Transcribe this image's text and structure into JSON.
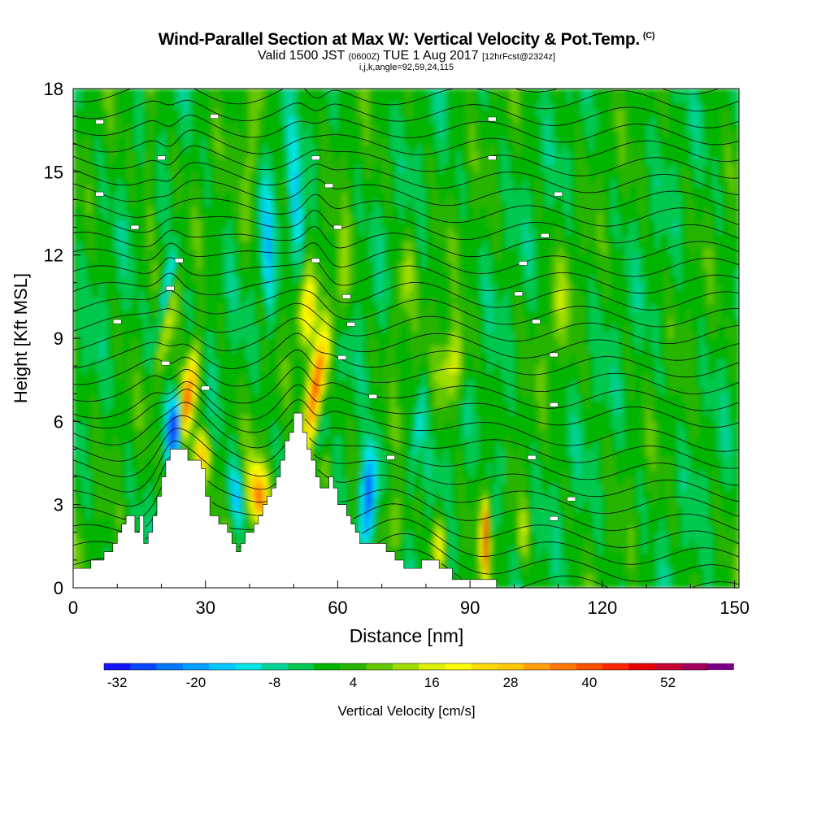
{
  "chart_data": {
    "type": "heatmap",
    "title": "Wind-Parallel Section at Max W: Vertical Velocity & Pot.Temp.",
    "title_mark": "(C)",
    "subtitle_main": "Valid 1500 JST",
    "subtitle_z": "(0600Z)",
    "subtitle_date": "TUE 1 Aug 2017",
    "subtitle_fcst": "[12hrFcst@2324z]",
    "subtitle_params": "i,j,k,angle=92,59,24,115",
    "xlabel": "Distance [nm]",
    "ylabel": "Height [Kft MSL]",
    "xlim": [
      0,
      151
    ],
    "ylim": [
      0,
      18
    ],
    "xticks": [
      0,
      30,
      60,
      90,
      120,
      150
    ],
    "yticks": [
      0,
      3,
      6,
      9,
      12,
      15,
      18
    ],
    "colorbar": {
      "label": "Vertical Velocity [cm/s]",
      "min": -34,
      "max": 58,
      "step": 4,
      "tick_values": [
        -32,
        -20,
        -8,
        4,
        16,
        28,
        40,
        52
      ],
      "tick_labels": [
        "-32",
        "-20",
        "-8",
        "4",
        "16",
        "28",
        "40",
        "52"
      ],
      "colors": [
        "#1414ff",
        "#0a46ff",
        "#0078ff",
        "#00a0ff",
        "#00c8ff",
        "#00e6e6",
        "#00d296",
        "#00c850",
        "#00b400",
        "#28b400",
        "#64c800",
        "#a0dc00",
        "#dcf000",
        "#ffff00",
        "#ffdc00",
        "#ffc800",
        "#ffa000",
        "#ff7800",
        "#ff5000",
        "#ff2800",
        "#e60000",
        "#c80032",
        "#a0005a",
        "#780082"
      ]
    },
    "terrain_kft": [
      [
        0,
        0.7
      ],
      [
        4,
        0.7
      ],
      [
        4,
        1.0
      ],
      [
        7,
        1.0
      ],
      [
        7,
        1.3
      ],
      [
        9,
        1.3
      ],
      [
        9,
        1.6
      ],
      [
        10,
        1.6
      ],
      [
        10,
        2.0
      ],
      [
        11,
        2.0
      ],
      [
        11,
        2.3
      ],
      [
        12,
        2.3
      ],
      [
        12,
        2.6
      ],
      [
        14,
        2.6
      ],
      [
        14,
        2.0
      ],
      [
        15,
        2.0
      ],
      [
        15,
        2.6
      ],
      [
        16,
        2.6
      ],
      [
        16,
        1.6
      ],
      [
        17,
        1.6
      ],
      [
        17,
        2.0
      ],
      [
        18,
        2.0
      ],
      [
        18,
        2.6
      ],
      [
        19,
        2.6
      ],
      [
        19,
        3.3
      ],
      [
        20,
        3.3
      ],
      [
        20,
        4.0
      ],
      [
        21,
        4.0
      ],
      [
        21,
        4.6
      ],
      [
        22,
        4.6
      ],
      [
        22,
        5.0
      ],
      [
        26,
        5.0
      ],
      [
        26,
        4.6
      ],
      [
        29,
        4.6
      ],
      [
        29,
        4.3
      ],
      [
        30,
        4.3
      ],
      [
        30,
        3.3
      ],
      [
        31,
        3.3
      ],
      [
        31,
        2.6
      ],
      [
        33,
        2.6
      ],
      [
        33,
        2.3
      ],
      [
        35,
        2.3
      ],
      [
        35,
        2.0
      ],
      [
        36,
        2.0
      ],
      [
        36,
        1.6
      ],
      [
        37,
        1.6
      ],
      [
        37,
        1.3
      ],
      [
        38,
        1.3
      ],
      [
        38,
        1.6
      ],
      [
        39,
        1.6
      ],
      [
        39,
        2.0
      ],
      [
        41,
        2.0
      ],
      [
        41,
        2.3
      ],
      [
        42,
        2.3
      ],
      [
        42,
        2.6
      ],
      [
        43,
        2.6
      ],
      [
        43,
        3.0
      ],
      [
        44,
        3.0
      ],
      [
        44,
        3.3
      ],
      [
        45,
        3.3
      ],
      [
        45,
        3.6
      ],
      [
        46,
        3.6
      ],
      [
        46,
        4.0
      ],
      [
        47,
        4.0
      ],
      [
        47,
        4.6
      ],
      [
        48,
        4.6
      ],
      [
        48,
        5.3
      ],
      [
        49,
        5.3
      ],
      [
        49,
        5.6
      ],
      [
        50,
        5.6
      ],
      [
        50,
        6.3
      ],
      [
        52,
        6.3
      ],
      [
        52,
        5.6
      ],
      [
        53,
        5.6
      ],
      [
        53,
        5.0
      ],
      [
        54,
        5.0
      ],
      [
        54,
        4.6
      ],
      [
        55,
        4.6
      ],
      [
        55,
        4.0
      ],
      [
        56,
        4.0
      ],
      [
        56,
        3.6
      ],
      [
        58,
        3.6
      ],
      [
        58,
        4.0
      ],
      [
        59,
        4.0
      ],
      [
        59,
        3.6
      ],
      [
        60,
        3.6
      ],
      [
        60,
        3.0
      ],
      [
        62,
        3.0
      ],
      [
        62,
        2.6
      ],
      [
        63,
        2.6
      ],
      [
        63,
        2.3
      ],
      [
        64,
        2.3
      ],
      [
        64,
        2.0
      ],
      [
        65,
        2.0
      ],
      [
        65,
        1.6
      ],
      [
        71,
        1.6
      ],
      [
        71,
        1.3
      ],
      [
        73,
        1.3
      ],
      [
        73,
        1.0
      ],
      [
        75,
        1.0
      ],
      [
        75,
        0.7
      ],
      [
        79,
        0.7
      ],
      [
        79,
        1.0
      ],
      [
        83,
        1.0
      ],
      [
        83,
        0.7
      ],
      [
        86,
        0.7
      ],
      [
        86,
        0.3
      ],
      [
        96,
        0.3
      ],
      [
        96,
        0
      ],
      [
        151,
        0
      ]
    ],
    "theta_labels": [
      [
        6,
        16.8
      ],
      [
        20,
        15.5
      ],
      [
        32,
        17.0
      ],
      [
        55,
        15.5
      ],
      [
        95,
        16.9
      ],
      [
        6,
        14.2
      ],
      [
        14,
        13.0
      ],
      [
        24,
        11.8
      ],
      [
        22,
        10.8
      ],
      [
        10,
        9.6
      ],
      [
        21,
        8.1
      ],
      [
        30,
        7.2
      ],
      [
        55,
        11.8
      ],
      [
        60,
        13.0
      ],
      [
        62,
        10.5
      ],
      [
        63,
        9.5
      ],
      [
        61,
        8.3
      ],
      [
        68,
        6.9
      ],
      [
        72,
        4.7
      ],
      [
        95,
        15.5
      ],
      [
        58,
        14.5
      ],
      [
        110,
        14.2
      ],
      [
        107,
        12.7
      ],
      [
        102,
        11.7
      ],
      [
        101,
        10.6
      ],
      [
        105,
        9.6
      ],
      [
        109,
        8.4
      ],
      [
        109,
        6.6
      ],
      [
        104,
        4.7
      ],
      [
        113,
        3.2
      ],
      [
        109,
        2.5
      ]
    ]
  }
}
